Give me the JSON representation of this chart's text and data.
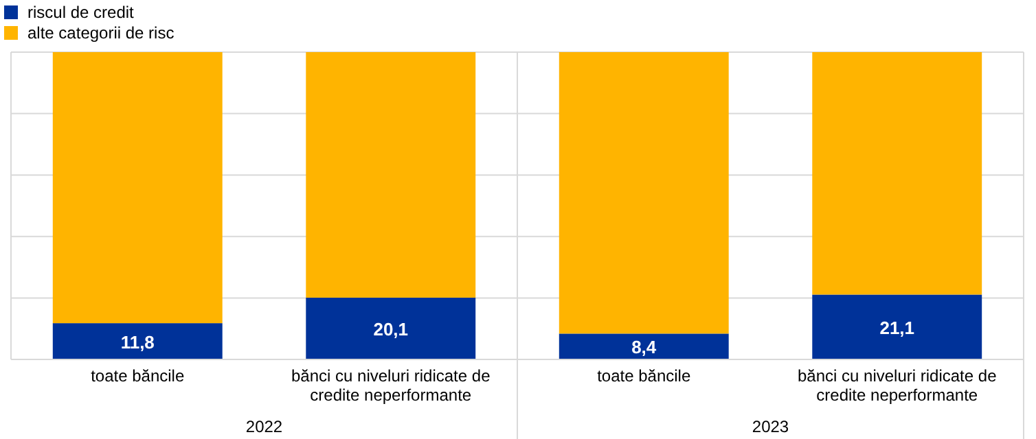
{
  "chart_data": {
    "type": "bar",
    "stacked": true,
    "categories": [
      "toate băncile",
      "bănci cu niveluri ridicate de credite neperformante",
      "toate băncile",
      "bănci cu niveluri ridicate de credite neperformante"
    ],
    "series": [
      {
        "name": "riscul de credit",
        "color": "#003299",
        "values": [
          11.8,
          20.1,
          8.4,
          21.1
        ],
        "value_labels": [
          "11,8",
          "20,1",
          "8,4",
          "21,1"
        ]
      },
      {
        "name": "alte categorii de risc",
        "color": "#ffb400",
        "values": [
          88.2,
          79.9,
          91.6,
          78.9
        ]
      }
    ],
    "ylim": [
      0,
      100
    ],
    "yticks": [
      {
        "value": 0,
        "label": null
      },
      {
        "value": 20,
        "label": null
      },
      {
        "value": 40,
        "label": null
      },
      {
        "value": 60,
        "label": null
      },
      {
        "value": 80,
        "label": null
      },
      {
        "value": 100,
        "label": null
      }
    ],
    "tick_labels": "x",
    "grid": "y",
    "legend": "top left",
    "annotations": [
      "2022",
      "2023"
    ]
  }
}
